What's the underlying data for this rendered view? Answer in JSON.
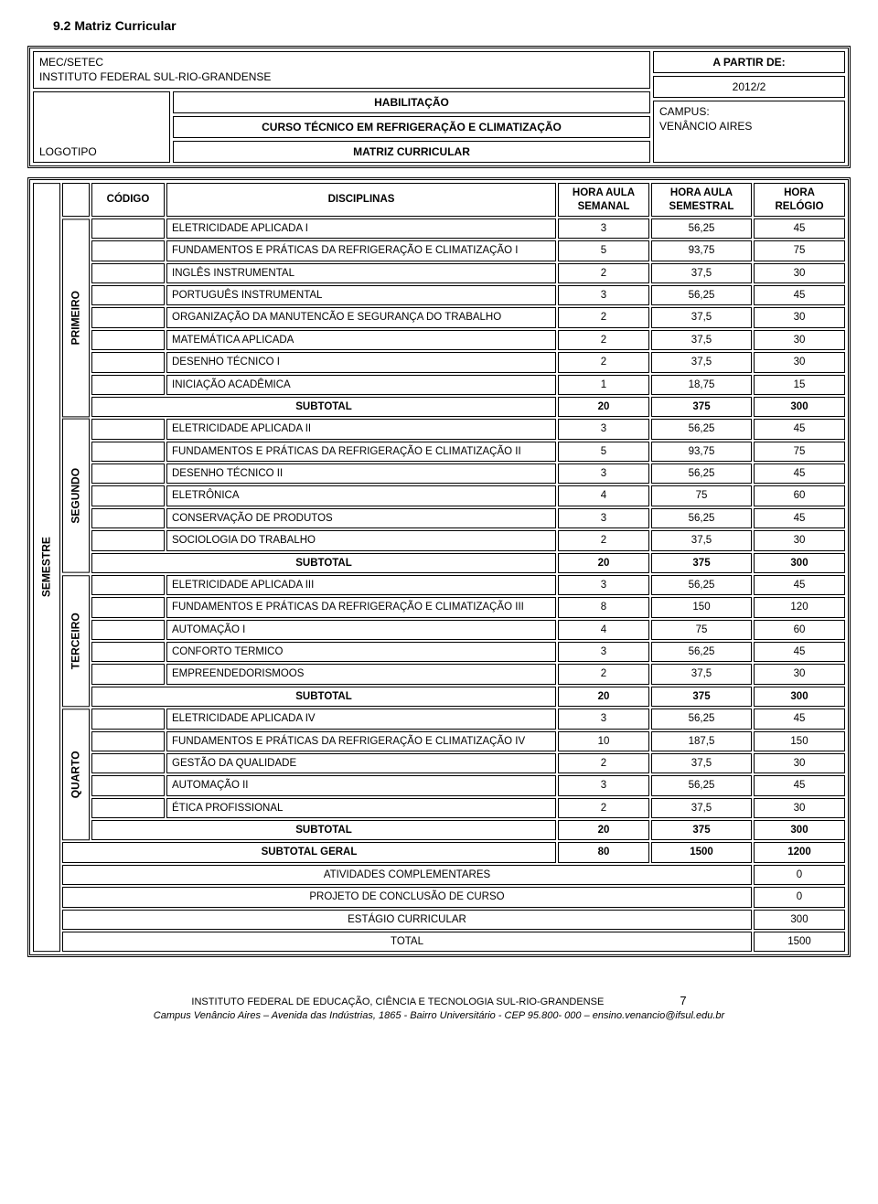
{
  "section_title": "9.2 Matriz Curricular",
  "header": {
    "mec": "MEC/SETEC",
    "instituto": "INSTITUTO FEDERAL SUL-RIO-GRANDENSE",
    "logotipo": "LOGOTIPO",
    "habilitacao": "HABILITAÇÃO",
    "curso": "CURSO TÉCNICO EM REFRIGERAÇÃO E CLIMATIZAÇÃO",
    "matriz": "MATRIZ CURRICULAR",
    "apartir": "A PARTIR DE:",
    "year": "2012/2",
    "campus_label": "CAMPUS:",
    "campus": "VENÂNCIO AIRES"
  },
  "cols": {
    "codigo": "CÓDIGO",
    "disciplinas": "DISCIPLINAS",
    "hora_aula_semanal": "HORA AULA SEMANAL",
    "hora_aula_semestral": "HORA AULA SEMESTRAL",
    "hora_relogio": "HORA RELÓGIO"
  },
  "semestre_label": "SEMESTRE",
  "groups": [
    {
      "label": "PRIMEIRO",
      "rows": [
        {
          "d": "ELETRICIDADE APLICADA I",
          "a": "3",
          "b": "56,25",
          "c": "45"
        },
        {
          "d": "FUNDAMENTOS E PRÁTICAS DA REFRIGERAÇÃO E CLIMATIZAÇÃO I",
          "a": "5",
          "b": "93,75",
          "c": "75"
        },
        {
          "d": "INGLÊS INSTRUMENTAL",
          "a": "2",
          "b": "37,5",
          "c": "30"
        },
        {
          "d": "PORTUGUÊS INSTRUMENTAL",
          "a": "3",
          "b": "56,25",
          "c": "45"
        },
        {
          "d": "ORGANIZAÇÃO DA MANUTENCÃO E SEGURANÇA DO TRABALHO",
          "a": "2",
          "b": "37,5",
          "c": "30"
        },
        {
          "d": "MATEMÁTICA APLICADA",
          "a": "2",
          "b": "37,5",
          "c": "30"
        },
        {
          "d": "DESENHO TÉCNICO I",
          "a": "2",
          "b": "37,5",
          "c": "30"
        },
        {
          "d": "INICIAÇÃO ACADÊMICA",
          "a": "1",
          "b": "18,75",
          "c": "15"
        }
      ],
      "subtotal": {
        "d": "SUBTOTAL",
        "a": "20",
        "b": "375",
        "c": "300"
      }
    },
    {
      "label": "SEGUNDO",
      "rows": [
        {
          "d": "ELETRICIDADE APLICADA II",
          "a": "3",
          "b": "56,25",
          "c": "45"
        },
        {
          "d": "FUNDAMENTOS E PRÁTICAS DA REFRIGERAÇÃO E CLIMATIZAÇÃO II",
          "a": "5",
          "b": "93,75",
          "c": "75"
        },
        {
          "d": "DESENHO TÉCNICO II",
          "a": "3",
          "b": "56,25",
          "c": "45"
        },
        {
          "d": "ELETRÔNICA",
          "a": "4",
          "b": "75",
          "c": "60"
        },
        {
          "d": "CONSERVAÇÃO DE PRODUTOS",
          "a": "3",
          "b": "56,25",
          "c": "45"
        },
        {
          "d": "SOCIOLOGIA DO TRABALHO",
          "a": "2",
          "b": "37,5",
          "c": "30"
        }
      ],
      "subtotal": {
        "d": "SUBTOTAL",
        "a": "20",
        "b": "375",
        "c": "300"
      }
    },
    {
      "label": "TERCEIRO",
      "rows": [
        {
          "d": "ELETRICIDADE APLICADA III",
          "a": "3",
          "b": "56,25",
          "c": "45"
        },
        {
          "d": "FUNDAMENTOS E PRÁTICAS DA REFRIGERAÇÃO E CLIMATIZAÇÃO III",
          "a": "8",
          "b": "150",
          "c": "120"
        },
        {
          "d": "AUTOMAÇÃO I",
          "a": "4",
          "b": "75",
          "c": "60"
        },
        {
          "d": "CONFORTO TERMICO",
          "a": "3",
          "b": "56,25",
          "c": "45"
        },
        {
          "d": "EMPREENDEDORISMOOS",
          "a": "2",
          "b": "37,5",
          "c": "30"
        }
      ],
      "subtotal": {
        "d": "SUBTOTAL",
        "a": "20",
        "b": "375",
        "c": "300"
      }
    },
    {
      "label": "QUARTO",
      "rows": [
        {
          "d": "ELETRICIDADE APLICADA IV",
          "a": "3",
          "b": "56,25",
          "c": "45"
        },
        {
          "d": "FUNDAMENTOS E PRÁTICAS DA REFRIGERAÇÃO E CLIMATIZAÇÃO IV",
          "a": "10",
          "b": "187,5",
          "c": "150"
        },
        {
          "d": "GESTÃO DA QUALIDADE",
          "a": "2",
          "b": "37,5",
          "c": "30"
        },
        {
          "d": "AUTOMAÇÃO II",
          "a": "3",
          "b": "56,25",
          "c": "45"
        },
        {
          "d": "ÉTICA PROFISSIONAL",
          "a": "2",
          "b": "37,5",
          "c": "30"
        }
      ],
      "subtotal": {
        "d": "SUBTOTAL",
        "a": "20",
        "b": "375",
        "c": "300"
      }
    }
  ],
  "subtotal_geral": {
    "d": "SUBTOTAL GERAL",
    "a": "80",
    "b": "1500",
    "c": "1200"
  },
  "extras": [
    {
      "d": "ATIVIDADES COMPLEMENTARES",
      "c": "0"
    },
    {
      "d": "PROJETO DE CONCLUSÃO DE CURSO",
      "c": "0"
    },
    {
      "d": "ESTÁGIO CURRICULAR",
      "c": "300"
    },
    {
      "d": "TOTAL",
      "c": "1500"
    }
  ],
  "footer": {
    "inst": "INSTITUTO FEDERAL DE EDUCAÇÃO, CIÊNCIA E TECNOLOGIA SUL-RIO-GRANDENSE",
    "page": "7",
    "addr": "Campus Venâncio Aires – Avenida das Indústrias, 1865 - Bairro Universitário - CEP 95.800- 000 – ensino.venancio@ifsul.edu.br"
  }
}
